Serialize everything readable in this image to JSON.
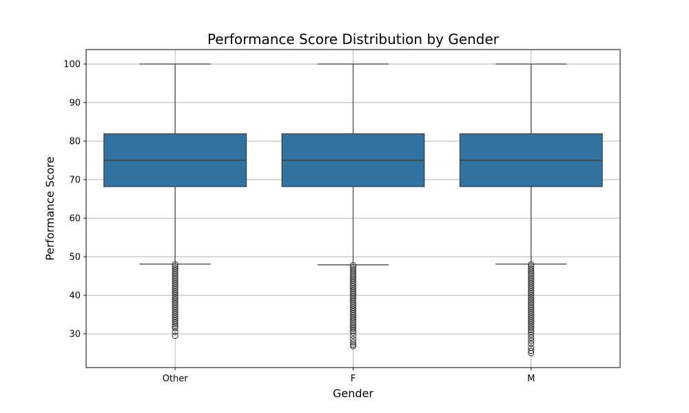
{
  "chart_data": {
    "type": "box",
    "title": "Performance Score Distribution by Gender",
    "xlabel": "Gender",
    "ylabel": "Performance Score",
    "ylim": [
      21.25,
      103.75
    ],
    "yticks": [
      30,
      40,
      50,
      60,
      70,
      80,
      90,
      100
    ],
    "grid": true,
    "box_color": "#3274a1",
    "line_color": "#3a3a3a",
    "categories": [
      "Other",
      "F",
      "M"
    ],
    "boxes": [
      {
        "category": "Other",
        "whisker_low": 48.1,
        "q1": 68.2,
        "median": 75.0,
        "q3": 81.9,
        "whisker_high": 100,
        "outliers": [
          48.0,
          47.5,
          47.0,
          46.5,
          46.0,
          45.5,
          45.0,
          44.5,
          44.0,
          43.5,
          43.0,
          42.5,
          42.0,
          41.5,
          41.0,
          40.5,
          40.0,
          39.5,
          39.0,
          38.5,
          38.0,
          37.5,
          37.0,
          36.5,
          36.0,
          35.5,
          35.0,
          34.5,
          34.0,
          33.5,
          33.0,
          32.5,
          32.0,
          31.5,
          30.5,
          29.5
        ]
      },
      {
        "category": "F",
        "whisker_low": 47.9,
        "q1": 68.2,
        "median": 75.0,
        "q3": 81.9,
        "whisker_high": 100,
        "outliers": [
          47.8,
          47.3,
          46.8,
          46.3,
          45.8,
          45.3,
          44.8,
          44.3,
          43.8,
          43.3,
          42.8,
          42.3,
          41.8,
          41.3,
          40.8,
          40.3,
          39.8,
          39.3,
          38.8,
          38.3,
          37.8,
          37.3,
          36.8,
          36.3,
          35.8,
          35.3,
          34.8,
          34.3,
          33.8,
          33.3,
          32.8,
          32.3,
          31.8,
          31.3,
          30.8,
          30.3,
          29.5,
          28.6,
          27.8,
          27.2,
          26.8
        ]
      },
      {
        "category": "M",
        "whisker_low": 48.1,
        "q1": 68.2,
        "median": 75.0,
        "q3": 81.9,
        "whisker_high": 100,
        "outliers": [
          48.0,
          47.5,
          47.0,
          46.5,
          46.0,
          45.5,
          45.0,
          44.5,
          44.0,
          43.5,
          43.0,
          42.5,
          42.0,
          41.5,
          41.0,
          40.5,
          40.0,
          39.5,
          39.0,
          38.5,
          38.0,
          37.5,
          37.0,
          36.5,
          36.0,
          35.5,
          35.0,
          34.5,
          34.0,
          33.5,
          33.0,
          32.5,
          32.0,
          31.5,
          31.0,
          30.5,
          29.8,
          29.0,
          28.2,
          27.4,
          26.4,
          25.6,
          25.0
        ]
      }
    ]
  }
}
